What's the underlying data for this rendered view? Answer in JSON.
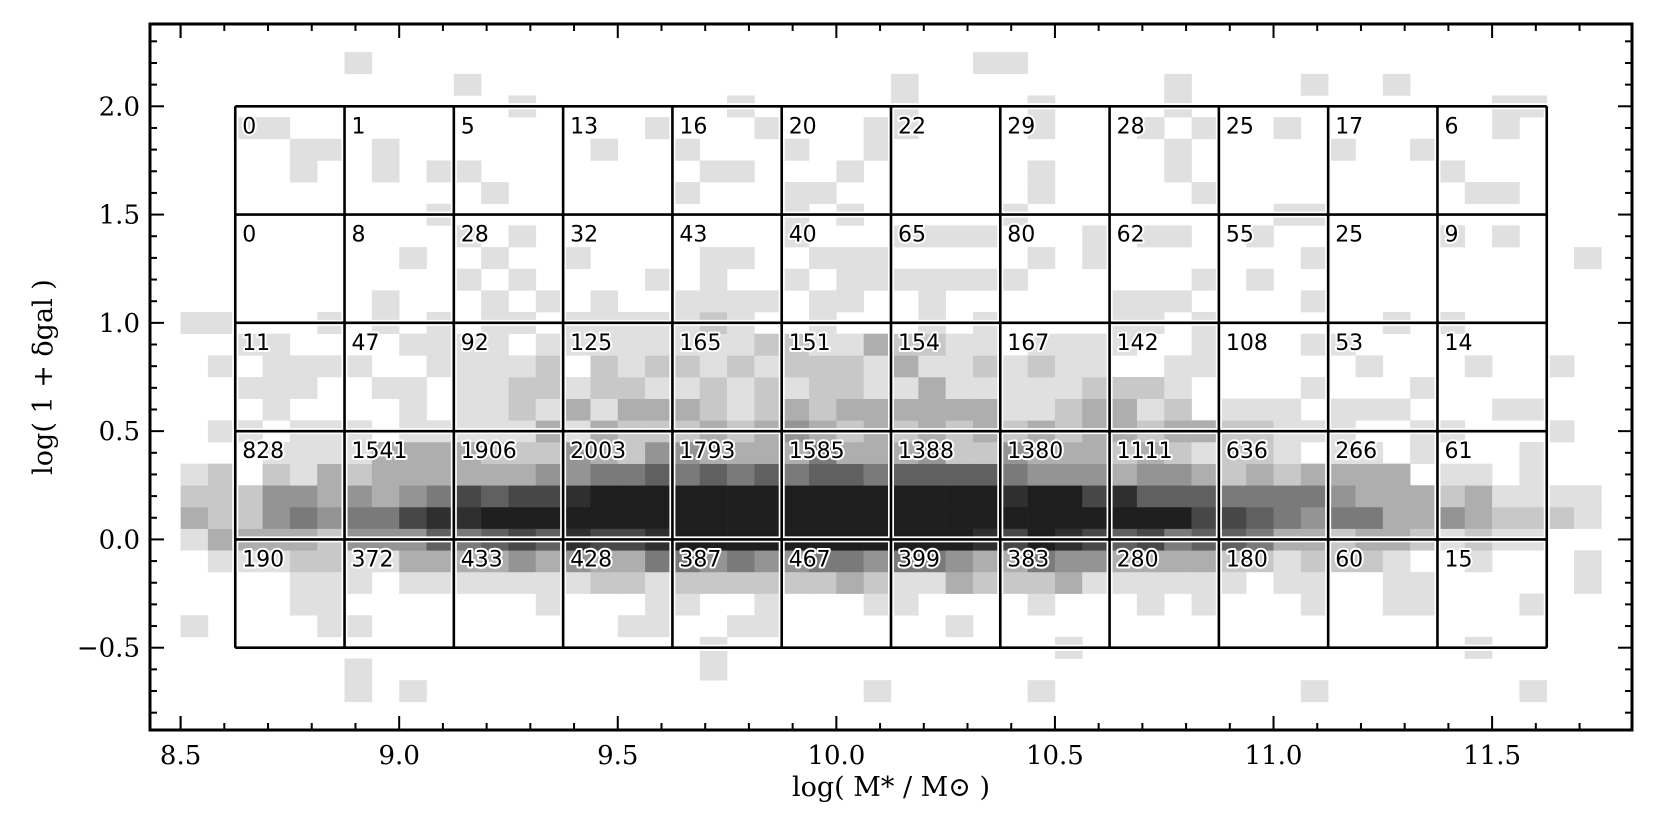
{
  "chart_data": {
    "type": "heatmap",
    "xlabel": "log( M* / M⊙ )",
    "ylabel": "log( 1 + δgal )",
    "xlim": [
      8.43,
      11.82
    ],
    "ylim": [
      -0.88,
      2.38
    ],
    "x_ticks": [
      "8.5",
      "9.0",
      "9.5",
      "10.0",
      "10.5",
      "11.0",
      "11.5"
    ],
    "x_tick_values": [
      8.5,
      9.0,
      9.5,
      10.0,
      10.5,
      11.0,
      11.5
    ],
    "y_ticks": [
      "−0.5",
      "0.0",
      "0.5",
      "1.0",
      "1.5",
      "2.0"
    ],
    "y_tick_values": [
      -0.5,
      0.0,
      0.5,
      1.0,
      1.5,
      2.0
    ],
    "grid": false,
    "bins": {
      "mass_edges": [
        8.625,
        8.875,
        9.125,
        9.375,
        9.625,
        9.875,
        10.125,
        10.375,
        10.625,
        10.875,
        11.125,
        11.375,
        11.625
      ],
      "density_edges": [
        2.0,
        1.5,
        1.0,
        0.5,
        0.0,
        -0.5
      ],
      "counts": [
        [
          "0",
          "1",
          "5",
          "13",
          "16",
          "20",
          "22",
          "29",
          "28",
          "25",
          "17",
          "6"
        ],
        [
          "0",
          "8",
          "28",
          "32",
          "43",
          "40",
          "65",
          "80",
          "62",
          "55",
          "25",
          "9"
        ],
        [
          "11",
          "47",
          "92",
          "125",
          "165",
          "151",
          "154",
          "167",
          "142",
          "108",
          "53",
          "14"
        ],
        [
          "828",
          "1541",
          "1906",
          "2003",
          "1793",
          "1585",
          "1388",
          "1380",
          "1111",
          "636",
          "266",
          "61"
        ],
        [
          "190",
          "372",
          "433",
          "428",
          "387",
          "467",
          "399",
          "383",
          "280",
          "180",
          "60",
          "15"
        ]
      ]
    },
    "background_histogram": {
      "colormap": "grayscale",
      "description_levels": [
        "#e0e0e0",
        "#c8c8c8",
        "#aeaeae",
        "#949494",
        "#7a7a7a",
        "#606060",
        "#474747",
        "#2f2f2f",
        "#1e1e1e"
      ]
    }
  }
}
